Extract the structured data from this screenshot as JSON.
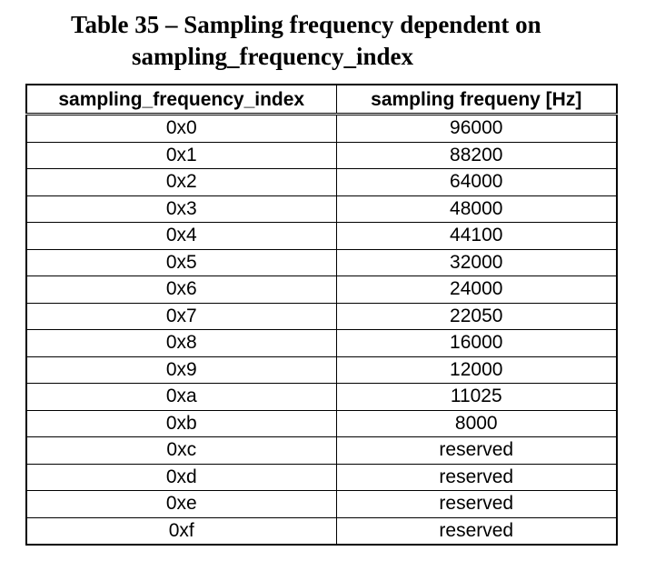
{
  "caption": {
    "line1": "Table 35 – Sampling frequency dependent on",
    "line2": "sampling_frequency_index"
  },
  "table": {
    "headers": [
      "sampling_frequency_index",
      "sampling frequeny [Hz]"
    ],
    "rows": [
      [
        "0x0",
        "96000"
      ],
      [
        "0x1",
        "88200"
      ],
      [
        "0x2",
        "64000"
      ],
      [
        "0x3",
        "48000"
      ],
      [
        "0x4",
        "44100"
      ],
      [
        "0x5",
        "32000"
      ],
      [
        "0x6",
        "24000"
      ],
      [
        "0x7",
        "22050"
      ],
      [
        "0x8",
        "16000"
      ],
      [
        "0x9",
        "12000"
      ],
      [
        "0xa",
        "11025"
      ],
      [
        "0xb",
        "8000"
      ],
      [
        "0xc",
        "reserved"
      ],
      [
        "0xd",
        "reserved"
      ],
      [
        "0xe",
        "reserved"
      ],
      [
        "0xf",
        "reserved"
      ]
    ]
  }
}
